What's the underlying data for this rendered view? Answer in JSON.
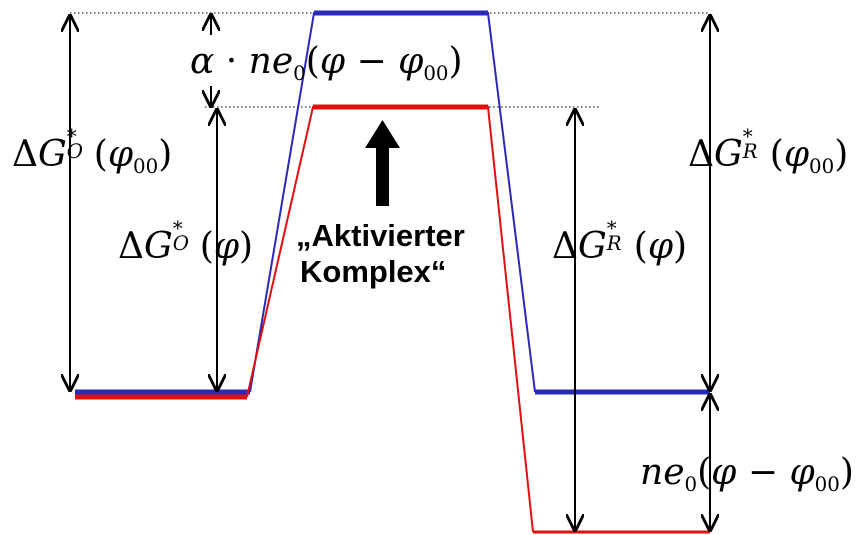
{
  "labels": {
    "activated_complex_line1": "„Aktivierter",
    "activated_complex_line2": "Komplex“"
  },
  "math": {
    "alpha_term": {
      "a": "α",
      "dot": "·",
      "n": "n",
      "e": "e",
      "e_sub": "0",
      "open": "(",
      "phi": "φ",
      "minus": "−",
      "phi00": "φ",
      "phi00_sub": "00",
      "close": ")"
    },
    "dGO_phi00": {
      "delta": "Δ",
      "G": "G",
      "star": "*",
      "sub": "O",
      "open": "(",
      "phi": "φ",
      "phi_sub": "00",
      "close": ")"
    },
    "dGO_phi": {
      "delta": "Δ",
      "G": "G",
      "star": "*",
      "sub": "O",
      "open": "(",
      "phi": "φ",
      "close": ")"
    },
    "dGR_phi00": {
      "delta": "Δ",
      "G": "G",
      "star": "*",
      "sub": "R",
      "open": "(",
      "phi": "φ",
      "phi_sub": "00",
      "close": ")"
    },
    "dGR_phi": {
      "delta": "Δ",
      "G": "G",
      "star": "*",
      "sub": "R",
      "open": "(",
      "phi": "φ",
      "close": ")"
    },
    "ne_term": {
      "n": "n",
      "e": "e",
      "e_sub": "0",
      "open": "(",
      "phi": "φ",
      "minus": "−",
      "phi00": "φ",
      "phi00_sub": "00",
      "close": ")"
    }
  },
  "colors": {
    "blue_profile": "#2a2ab8",
    "red_profile": "#e01010",
    "arrow": "#000000",
    "dotted_guides": "#000000"
  }
}
